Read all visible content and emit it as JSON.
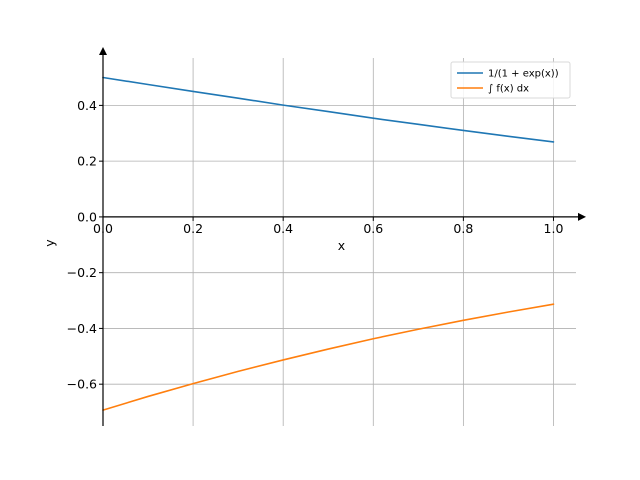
{
  "chart_data": {
    "type": "line",
    "xlabel": "x",
    "ylabel": "y",
    "xlim": [
      0.0,
      1.05
    ],
    "ylim": [
      -0.75,
      0.57
    ],
    "xticks": [
      0.0,
      0.2,
      0.4,
      0.6,
      0.8,
      1.0
    ],
    "xtick_labels": [
      "0.0",
      "0.2",
      "0.4",
      "0.6",
      "0.8",
      "1.0"
    ],
    "yticks": [
      -0.6,
      -0.4,
      -0.2,
      0.0,
      0.2,
      0.4
    ],
    "ytick_labels": [
      "−0.6",
      "−0.4",
      "−0.2",
      "0.0",
      "0.2",
      "0.4"
    ],
    "grid": true,
    "legend": "top-right",
    "series": [
      {
        "name": "1/(1 + exp(x))",
        "color": "#1f77b4",
        "x": [
          0.0,
          0.1,
          0.2,
          0.3,
          0.4,
          0.5,
          0.6,
          0.7,
          0.8,
          0.9,
          1.0
        ],
        "y": [
          0.5,
          0.475,
          0.45,
          0.426,
          0.401,
          0.378,
          0.354,
          0.332,
          0.31,
          0.289,
          0.269
        ]
      },
      {
        "name": "∫ f(x) dx",
        "color": "#ff7f0e",
        "x": [
          0.0,
          0.1,
          0.2,
          0.3,
          0.4,
          0.5,
          0.6,
          0.7,
          0.8,
          0.9,
          1.0
        ],
        "y": [
          -0.693,
          -0.644,
          -0.598,
          -0.554,
          -0.513,
          -0.474,
          -0.437,
          -0.403,
          -0.371,
          -0.341,
          -0.313
        ]
      }
    ]
  }
}
